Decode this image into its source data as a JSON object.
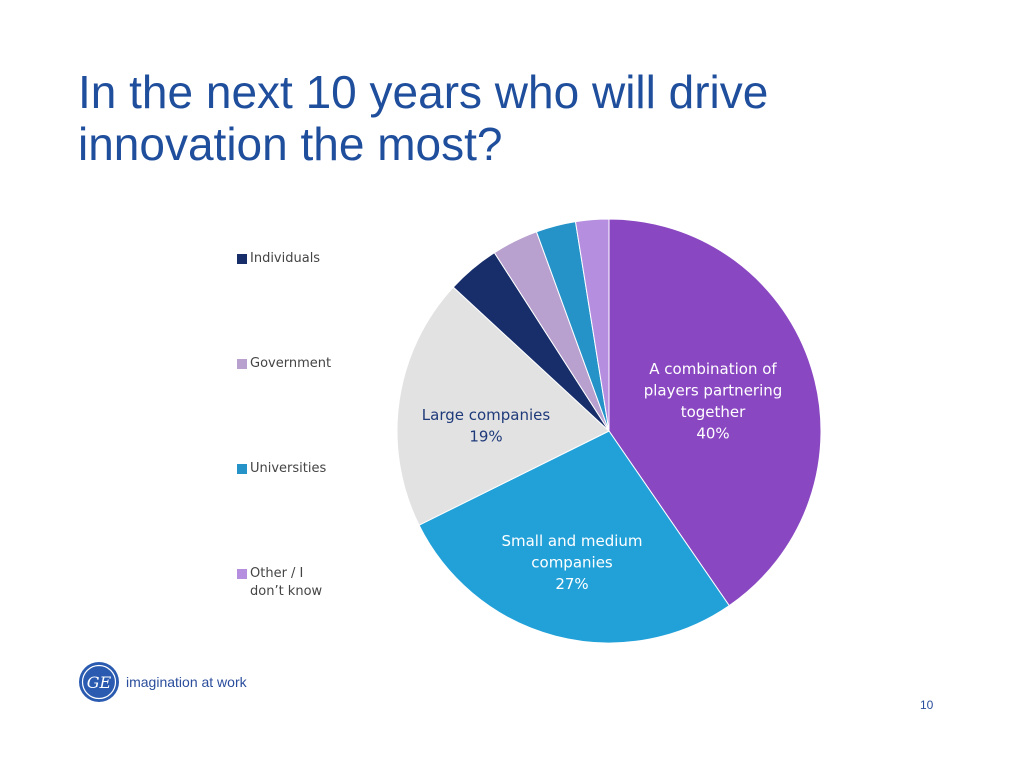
{
  "slide": {
    "title_line1": "In the next 10 years who will drive",
    "title_line2": "innovation the most?",
    "tagline": "imagination at work",
    "logo_text": "GE",
    "page_number": "10"
  },
  "chart_data": {
    "type": "pie",
    "start_angle_deg": 0,
    "direction": "clockwise",
    "legend_position": "left",
    "slices": [
      {
        "name": "A combination of players partnering together",
        "value": 40,
        "label": "40%",
        "color": "#8a47c2",
        "label_color": "#ffffff",
        "label_lines": [
          "A combination of",
          "players partnering",
          "together"
        ]
      },
      {
        "name": "Small and medium companies",
        "value": 27,
        "label": "27%",
        "color": "#22a1d9",
        "label_color": "#ffffff",
        "label_lines": [
          "Small and medium",
          "companies"
        ]
      },
      {
        "name": "Large companies",
        "value": 19,
        "label": "19%",
        "color": "#e2e2e2",
        "label_color": "#1f3a7a",
        "label_lines": [
          "Large companies"
        ]
      },
      {
        "name": "Individuals",
        "value": 4,
        "label": "",
        "color": "#172e6b",
        "label_color": "",
        "label_lines": []
      },
      {
        "name": "Government",
        "value": 3.5,
        "label": "",
        "color": "#b8a0cf",
        "label_color": "",
        "label_lines": []
      },
      {
        "name": "Universities",
        "value": 3,
        "label": "",
        "color": "#2592c8",
        "label_color": "",
        "label_lines": []
      },
      {
        "name": "Other / I don't know",
        "value": 2.5,
        "label": "",
        "color": "#b58ee0",
        "label_color": "",
        "label_lines": []
      }
    ],
    "legend": [
      {
        "label": "Individuals",
        "color": "#172e6b"
      },
      {
        "label": "Government",
        "color": "#b8a0cf"
      },
      {
        "label": "Universities",
        "color": "#2592c8"
      },
      {
        "label": "Other / I don’t know",
        "color": "#b58ee0"
      }
    ]
  }
}
